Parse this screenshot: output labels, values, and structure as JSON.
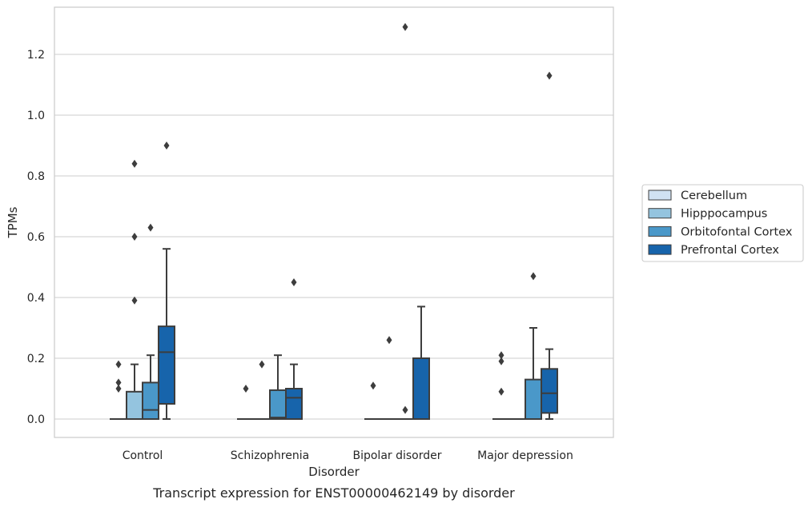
{
  "chart_data": {
    "type": "boxplot",
    "caption": "Transcript expression for ENST00000462149 by disorder",
    "xlabel": "Disorder",
    "ylabel": "TPMs",
    "ylim": [
      -0.065,
      1.355
    ],
    "yticks": [
      0.0,
      0.2,
      0.4,
      0.6,
      0.8,
      1.0,
      1.2
    ],
    "ytick_labels": [
      "0.0",
      "0.2",
      "0.4",
      "0.6",
      "0.8",
      "1.0",
      "1.2"
    ],
    "grid": "horizontal",
    "legend_position": "right",
    "categories": [
      "Control",
      "Schizophrenia",
      "Bipolar disorder",
      "Major depression"
    ],
    "series": [
      {
        "name": "Cerebellum",
        "color": "#d0e1f2",
        "boxes": [
          {
            "q1": 0,
            "median": 0,
            "q3": 0,
            "whislo": 0,
            "whishi": 0,
            "fliers": [
              0.1,
              0.12,
              0.18
            ]
          },
          {
            "q1": 0,
            "median": 0,
            "q3": 0,
            "whislo": 0,
            "whishi": 0,
            "fliers": [
              0.1
            ]
          },
          {
            "q1": 0,
            "median": 0,
            "q3": 0,
            "whislo": 0,
            "whishi": 0,
            "fliers": [
              0.11
            ]
          },
          {
            "q1": 0,
            "median": 0,
            "q3": 0,
            "whislo": 0,
            "whishi": 0,
            "fliers": [
              0.09,
              0.19,
              0.21
            ]
          }
        ]
      },
      {
        "name": "Hipppocampus",
        "color": "#94c4df",
        "boxes": [
          {
            "q1": 0,
            "median": 0,
            "q3": 0.09,
            "whislo": 0,
            "whishi": 0.18,
            "fliers": [
              0.39,
              0.6,
              0.84
            ]
          },
          {
            "q1": 0,
            "median": 0,
            "q3": 0,
            "whislo": 0,
            "whishi": 0,
            "fliers": [
              0.18
            ]
          },
          {
            "q1": 0,
            "median": 0,
            "q3": 0,
            "whislo": 0,
            "whishi": 0,
            "fliers": [
              0.26
            ]
          },
          {
            "q1": 0,
            "median": 0,
            "q3": 0,
            "whislo": 0,
            "whishi": 0,
            "fliers": []
          }
        ]
      },
      {
        "name": "Orbitofontal Cortex",
        "color": "#4a98c9",
        "boxes": [
          {
            "q1": 0,
            "median": 0.03,
            "q3": 0.12,
            "whislo": 0,
            "whishi": 0.21,
            "fliers": [
              0.63
            ]
          },
          {
            "q1": 0,
            "median": 0.005,
            "q3": 0.095,
            "whislo": 0,
            "whishi": 0.21,
            "fliers": []
          },
          {
            "q1": 0,
            "median": 0,
            "q3": 0,
            "whislo": 0,
            "whishi": 0,
            "fliers": [
              0.03,
              1.29
            ]
          },
          {
            "q1": 0,
            "median": 0,
            "q3": 0.13,
            "whislo": 0,
            "whishi": 0.3,
            "fliers": [
              0.47
            ]
          }
        ]
      },
      {
        "name": "Prefrontal Cortex",
        "color": "#1764ab",
        "boxes": [
          {
            "q1": 0.05,
            "median": 0.22,
            "q3": 0.305,
            "whislo": 0,
            "whishi": 0.56,
            "fliers": [
              0.9
            ]
          },
          {
            "q1": 0,
            "median": 0.07,
            "q3": 0.1,
            "whislo": 0,
            "whishi": 0.18,
            "fliers": [
              0.45
            ]
          },
          {
            "q1": 0,
            "median": 0,
            "q3": 0.2,
            "whislo": 0,
            "whishi": 0.37,
            "fliers": []
          },
          {
            "q1": 0.02,
            "median": 0.085,
            "q3": 0.165,
            "whislo": 0,
            "whishi": 0.23,
            "fliers": [
              1.13
            ]
          }
        ]
      }
    ]
  }
}
